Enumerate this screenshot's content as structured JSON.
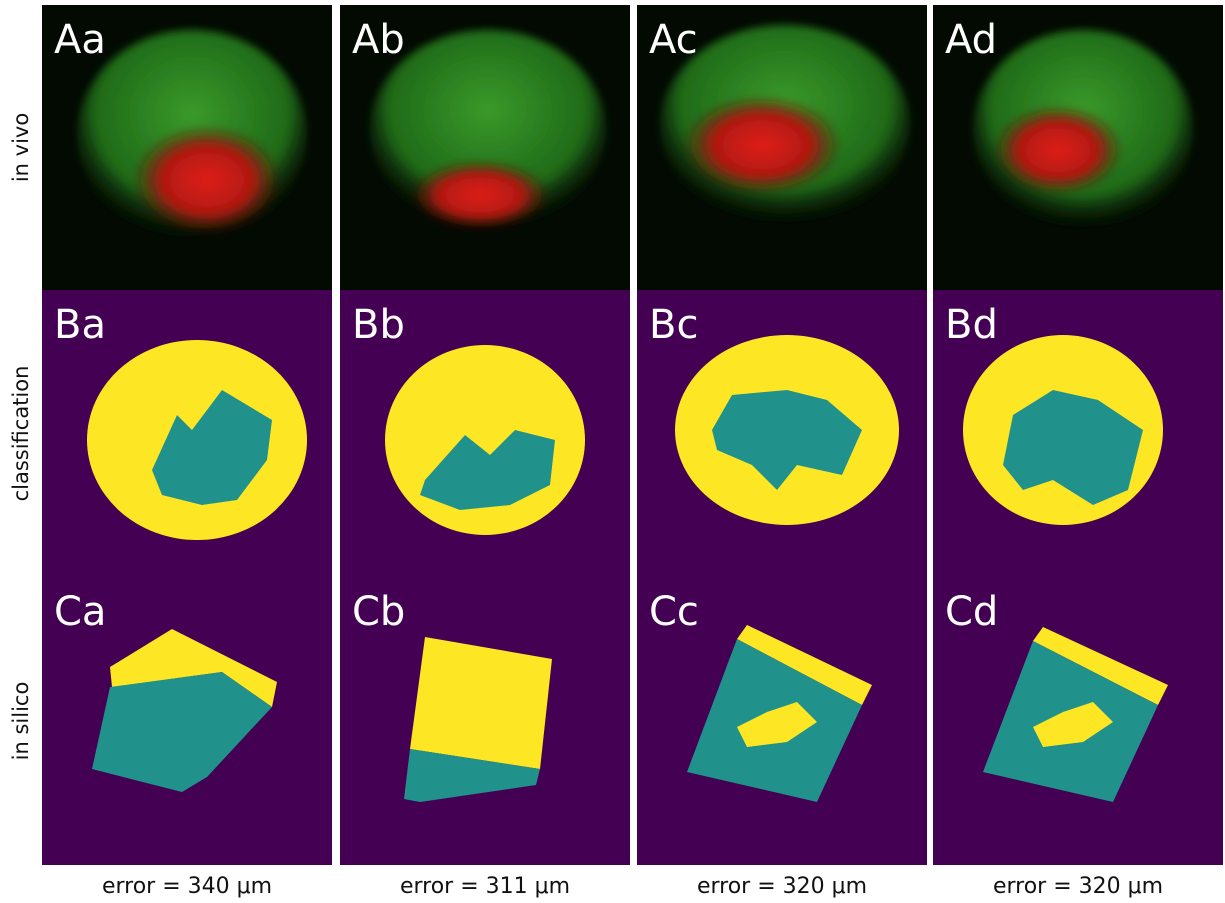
{
  "row_labels": [
    "in vivo",
    "classification",
    "in silico"
  ],
  "columns": [
    {
      "in_vivo_label": "Aa",
      "classification_label": "Ba",
      "in_silico_label": "Ca",
      "error": "error = 340 μm"
    },
    {
      "in_vivo_label": "Ab",
      "classification_label": "Bb",
      "in_silico_label": "Cb",
      "error": "error = 311 μm"
    },
    {
      "in_vivo_label": "Ac",
      "classification_label": "Bc",
      "in_silico_label": "Cc",
      "error": "error = 320 μm"
    },
    {
      "in_vivo_label": "Ad",
      "classification_label": "Bd",
      "in_silico_label": "Cd",
      "error": "error = 320 μm"
    }
  ]
}
